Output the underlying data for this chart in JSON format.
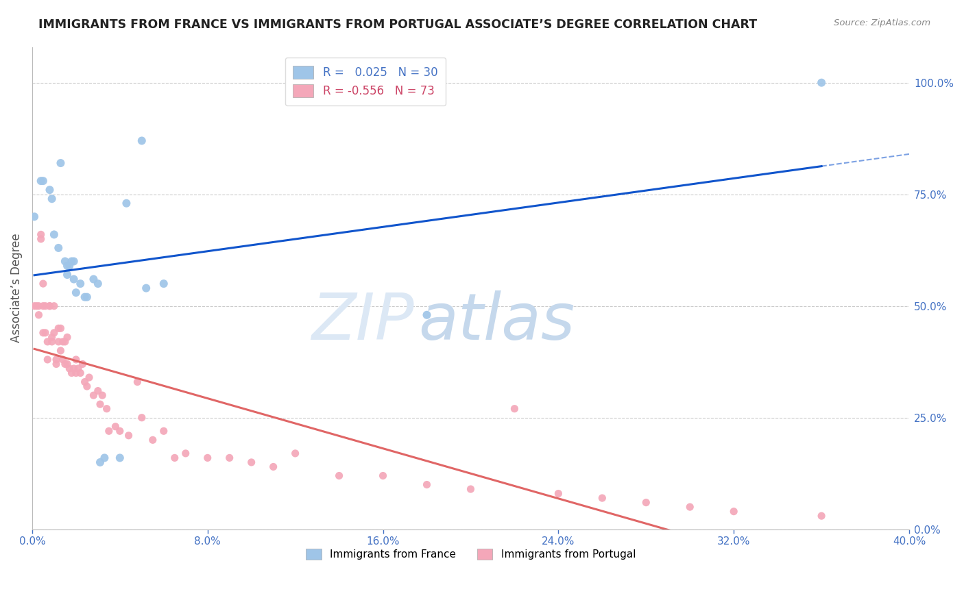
{
  "title": "IMMIGRANTS FROM FRANCE VS IMMIGRANTS FROM PORTUGAL ASSOCIATE’S DEGREE CORRELATION CHART",
  "source": "Source: ZipAtlas.com",
  "ylabel": "Associate’s Degree",
  "r_france": 0.025,
  "n_france": 30,
  "r_portugal": -0.556,
  "n_portugal": 73,
  "color_france": "#9fc5e8",
  "color_portugal": "#f4a7b9",
  "line_color_france": "#1155cc",
  "line_color_portugal": "#e06666",
  "axis_color": "#4472c4",
  "watermark_color": "#dce8f5",
  "xlim_min": 0.0,
  "xlim_max": 0.4,
  "ylim_min": 0.0,
  "ylim_max": 1.08,
  "xticks": [
    0.0,
    0.08,
    0.16,
    0.24,
    0.32,
    0.4
  ],
  "xticklabels": [
    "0.0%",
    "8.0%",
    "16.0%",
    "24.0%",
    "32.0%",
    "40.0%"
  ],
  "right_yticks": [
    0.0,
    0.25,
    0.5,
    0.75,
    1.0
  ],
  "right_yticklabels": [
    "0.0%",
    "25.0%",
    "50.0%",
    "75.0%",
    "100.0%"
  ],
  "france_x": [
    0.001,
    0.004,
    0.005,
    0.008,
    0.009,
    0.01,
    0.012,
    0.013,
    0.015,
    0.016,
    0.016,
    0.017,
    0.018,
    0.019,
    0.019,
    0.02,
    0.022,
    0.024,
    0.025,
    0.028,
    0.03,
    0.031,
    0.033,
    0.04,
    0.043,
    0.05,
    0.052,
    0.06,
    0.18,
    0.36
  ],
  "france_y": [
    0.7,
    0.78,
    0.78,
    0.76,
    0.74,
    0.66,
    0.63,
    0.82,
    0.6,
    0.57,
    0.59,
    0.59,
    0.6,
    0.6,
    0.56,
    0.53,
    0.55,
    0.52,
    0.52,
    0.56,
    0.55,
    0.15,
    0.16,
    0.16,
    0.73,
    0.87,
    0.54,
    0.55,
    0.48,
    1.0
  ],
  "portugal_x": [
    0.001,
    0.002,
    0.003,
    0.003,
    0.004,
    0.004,
    0.005,
    0.005,
    0.005,
    0.006,
    0.006,
    0.007,
    0.007,
    0.008,
    0.008,
    0.009,
    0.009,
    0.01,
    0.01,
    0.011,
    0.011,
    0.012,
    0.012,
    0.013,
    0.013,
    0.014,
    0.014,
    0.015,
    0.015,
    0.016,
    0.016,
    0.017,
    0.018,
    0.019,
    0.02,
    0.02,
    0.021,
    0.022,
    0.023,
    0.024,
    0.025,
    0.026,
    0.028,
    0.03,
    0.031,
    0.032,
    0.034,
    0.035,
    0.038,
    0.04,
    0.044,
    0.048,
    0.05,
    0.055,
    0.06,
    0.065,
    0.07,
    0.08,
    0.09,
    0.1,
    0.11,
    0.12,
    0.14,
    0.16,
    0.18,
    0.2,
    0.22,
    0.24,
    0.26,
    0.28,
    0.3,
    0.32,
    0.36
  ],
  "portugal_y": [
    0.5,
    0.5,
    0.5,
    0.48,
    0.65,
    0.66,
    0.44,
    0.55,
    0.5,
    0.5,
    0.44,
    0.42,
    0.38,
    0.5,
    0.5,
    0.42,
    0.43,
    0.5,
    0.44,
    0.38,
    0.37,
    0.45,
    0.42,
    0.4,
    0.45,
    0.38,
    0.42,
    0.37,
    0.42,
    0.43,
    0.37,
    0.36,
    0.35,
    0.36,
    0.38,
    0.35,
    0.36,
    0.35,
    0.37,
    0.33,
    0.32,
    0.34,
    0.3,
    0.31,
    0.28,
    0.3,
    0.27,
    0.22,
    0.23,
    0.22,
    0.21,
    0.33,
    0.25,
    0.2,
    0.22,
    0.16,
    0.17,
    0.16,
    0.16,
    0.15,
    0.14,
    0.17,
    0.12,
    0.12,
    0.1,
    0.09,
    0.27,
    0.08,
    0.07,
    0.06,
    0.05,
    0.04,
    0.03
  ]
}
